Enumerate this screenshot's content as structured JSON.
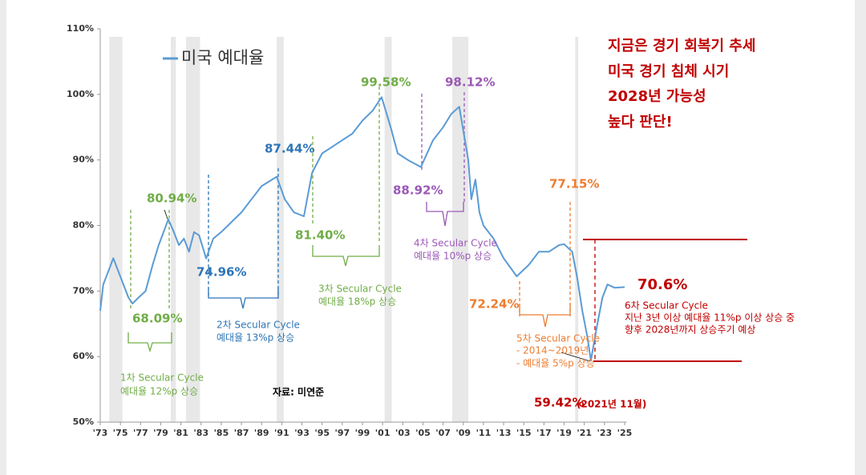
{
  "chart_data": {
    "type": "line",
    "x": [
      1973.0,
      1973.3,
      1973.8,
      1974.3,
      1974.8,
      1975.3,
      1975.8,
      1976.2,
      1976.8,
      1977.5,
      1978.2,
      1978.8,
      1979.75,
      1980.3,
      1980.8,
      1981.3,
      1981.8,
      1982.3,
      1982.8,
      1983.5,
      1984.2,
      1985.0,
      1986.0,
      1987.0,
      1988.0,
      1989.0,
      1990.5,
      1991.3,
      1992.2,
      1993.2,
      1994.0,
      1995.0,
      1996.0,
      1997.0,
      1998.0,
      1999.0,
      2000.0,
      2000.9,
      2001.8,
      2002.5,
      2003.5,
      2004.8,
      2006.0,
      2007.0,
      2007.8,
      2008.6,
      2009.5,
      2009.8,
      2010.2,
      2010.6,
      2011.0,
      2012.0,
      2013.0,
      2014.3,
      2015.5,
      2016.5,
      2017.5,
      2018.5,
      2019.0,
      2019.8,
      2020.3,
      2020.8,
      2021.3,
      2021.65,
      2022.3,
      2022.8,
      2023.3,
      2024.0,
      2025.0
    ],
    "series": [
      {
        "name": "미국 예대율",
        "color": "#5b9bd5",
        "values": [
          67,
          71,
          73,
          75,
          73,
          71,
          69,
          68.09,
          69,
          70,
          74,
          77,
          80.94,
          79,
          77,
          78,
          76,
          79,
          78.5,
          74.96,
          78,
          79,
          80.5,
          82,
          84,
          86,
          87.44,
          84,
          82,
          81.4,
          88,
          91,
          92,
          93,
          94,
          96,
          97.5,
          99.58,
          95,
          91,
          90,
          88.92,
          93,
          95,
          97,
          98.12,
          90,
          84,
          87,
          82,
          80,
          78,
          75,
          72.24,
          74,
          76,
          76,
          77,
          77.15,
          76,
          72,
          67,
          63,
          59.42,
          65,
          69,
          71,
          70.5,
          70.6
        ]
      }
    ],
    "xlim": [
      1973,
      2025.2
    ],
    "ylim": [
      50,
      110
    ],
    "xticks": [
      {
        "value": 1973,
        "label": "'73"
      },
      {
        "value": 1975,
        "label": "'75"
      },
      {
        "value": 1977,
        "label": "'77"
      },
      {
        "value": 1979,
        "label": "'79"
      },
      {
        "value": 1981,
        "label": "'81"
      },
      {
        "value": 1983,
        "label": "'83"
      },
      {
        "value": 1985,
        "label": "'85"
      },
      {
        "value": 1987,
        "label": "'87"
      },
      {
        "value": 1989,
        "label": "'89"
      },
      {
        "value": 1991,
        "label": "'91"
      },
      {
        "value": 1993,
        "label": "'93"
      },
      {
        "value": 1995,
        "label": "'95"
      },
      {
        "value": 1997,
        "label": "'97"
      },
      {
        "value": 1999,
        "label": "'99"
      },
      {
        "value": 2001,
        "label": "'01"
      },
      {
        "value": 2003,
        "label": "'03"
      },
      {
        "value": 2005,
        "label": "'05"
      },
      {
        "value": 2007,
        "label": "'07"
      },
      {
        "value": 2009,
        "label": "'09"
      },
      {
        "value": 2011,
        "label": "'11"
      },
      {
        "value": 2013,
        "label": "'13"
      },
      {
        "value": 2015,
        "label": "'15"
      },
      {
        "value": 2017,
        "label": "'17"
      },
      {
        "value": 2019,
        "label": "'19"
      },
      {
        "value": 2021,
        "label": "'21"
      },
      {
        "value": 2023,
        "label": "'23"
      },
      {
        "value": 2025,
        "label": "'25"
      }
    ],
    "yticks": [
      {
        "value": 50,
        "label": "50%"
      },
      {
        "value": 60,
        "label": "60%"
      },
      {
        "value": 70,
        "label": "70%"
      },
      {
        "value": 80,
        "label": "80%"
      },
      {
        "value": 90,
        "label": "90%"
      },
      {
        "value": 100,
        "label": "100%"
      },
      {
        "value": 110,
        "label": "110%"
      }
    ],
    "recessions": [
      [
        1973.9,
        1975.2
      ],
      [
        1980.0,
        1980.5
      ],
      [
        1981.5,
        1982.9
      ],
      [
        1990.5,
        1991.2
      ],
      [
        2001.2,
        2001.9
      ],
      [
        2007.9,
        2009.5
      ],
      [
        2020.1,
        2020.4
      ]
    ],
    "recession_color": "#e8e8e8",
    "annotations": [
      {
        "text": "80.94%",
        "color": "#70ad47"
      },
      {
        "text": "68.09%",
        "color": "#70ad47"
      },
      {
        "text": "1차 Secular Cycle",
        "color": "#70ad47"
      },
      {
        "text": "예대율 12%p 상승",
        "color": "#70ad47"
      },
      {
        "text": "87.44%",
        "color": "#2e75b6"
      },
      {
        "text": "74.96%",
        "color": "#2e75b6"
      },
      {
        "text": "2차 Secular Cycle",
        "color": "#2e75b6"
      },
      {
        "text": "예대율 13%p 상승",
        "color": "#2e75b6"
      },
      {
        "text": "99.58%",
        "color": "#70ad47"
      },
      {
        "text": "81.40%",
        "color": "#70ad47"
      },
      {
        "text": "3차 Secular Cycle",
        "color": "#70ad47"
      },
      {
        "text": "예대율 18%p 상승",
        "color": "#70ad47"
      },
      {
        "text": "98.12%",
        "color": "#9b59b6"
      },
      {
        "text": "88.92%",
        "color": "#9b59b6"
      },
      {
        "text": "4차 Secular Cycle",
        "color": "#9b59b6"
      },
      {
        "text": "예대율 10%p 상승",
        "color": "#9b59b6"
      },
      {
        "text": "77.15%",
        "color": "#ed7d31"
      },
      {
        "text": "72.24%",
        "color": "#ed7d31"
      },
      {
        "text": "5차 Secular Cycle",
        "color": "#ed7d31"
      },
      {
        "text": "- 2014~2019년",
        "color": "#ed7d31"
      },
      {
        "text": "- 예대율 5%p 상승",
        "color": "#ed7d31"
      },
      {
        "text": "59.42%",
        "color": "#c00000"
      },
      {
        "text": "(2021년 11월)",
        "color": "#c00000"
      },
      {
        "text": "70.6%",
        "color": "#c00000"
      },
      {
        "text": "6차 Secular Cycle",
        "color": "#c00000"
      },
      {
        "text": "지난 3년 이상 예대율 11%p 이상 상승 중",
        "color": "#c00000"
      },
      {
        "text": "향후 2028년까지 상승주기 예상",
        "color": "#c00000"
      },
      {
        "text": "자료: 미연준",
        "color": "#000000"
      },
      {
        "text": "지금은 경기 회복기 추세",
        "color": "#c00000"
      },
      {
        "text": "미국 경기 침체 시기",
        "color": "#c00000"
      },
      {
        "text": "2028년 가능성",
        "color": "#c00000"
      },
      {
        "text": "높다 판단!",
        "color": "#c00000"
      }
    ]
  }
}
